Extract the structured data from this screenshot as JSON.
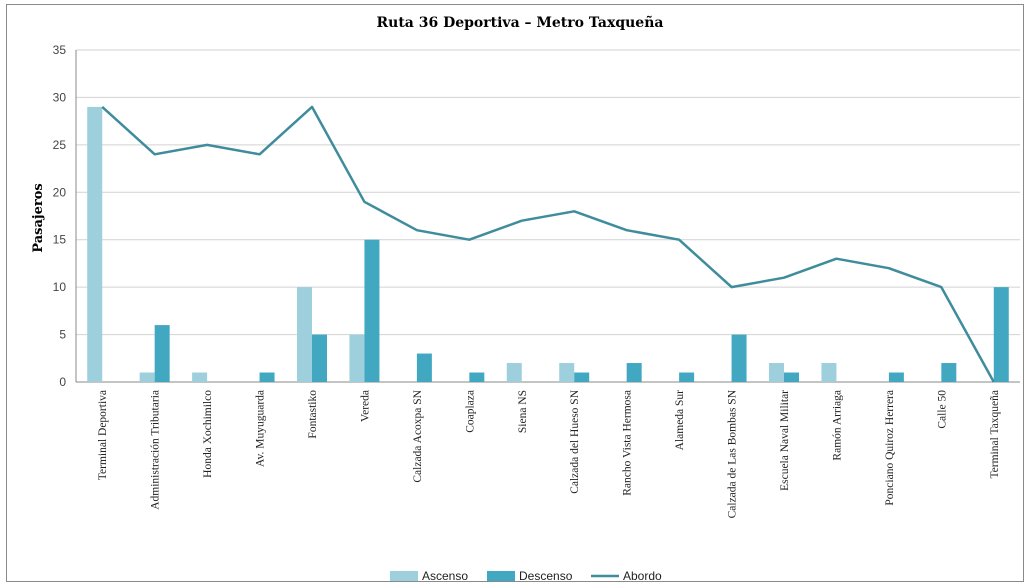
{
  "chart_data": {
    "type": "bar",
    "title": "Ruta 36 Deportiva – Metro Taxqueña",
    "ylabel": "Pasajeros",
    "xlabel": "",
    "ylim": [
      0,
      35
    ],
    "yticks": [
      0,
      5,
      10,
      15,
      20,
      25,
      30,
      35
    ],
    "grid": true,
    "legend_position": "bottom",
    "categories": [
      "Terminal Deportiva",
      "Administración Tributaria",
      "Honda Xochimilco",
      "Av. Muyuguarda",
      "Fontastiko",
      "Vereda",
      "Calzada Acoxpa SN",
      "Coaplaza",
      "Siena NS",
      "Calzada del Hueso SN",
      "Rancho Vista Hermosa",
      "Alameda Sur",
      "Calzada de Las Bombas SN",
      "Escuela Naval Militar",
      "Ramón Arriaga",
      "Ponciano Quiroz Herrera",
      "Calle 50",
      "Terminal Taxqueña"
    ],
    "series": [
      {
        "name": "Ascenso",
        "type": "bar",
        "color": "#9ecfdd",
        "values": [
          29,
          1,
          1,
          0,
          10,
          5,
          0,
          0,
          2,
          2,
          0,
          0,
          0,
          2,
          2,
          0,
          0,
          0
        ]
      },
      {
        "name": "Descenso",
        "type": "bar",
        "color": "#42a8c2",
        "values": [
          0,
          6,
          0,
          1,
          5,
          15,
          3,
          1,
          0,
          1,
          2,
          1,
          5,
          1,
          0,
          1,
          2,
          10
        ]
      },
      {
        "name": "Abordo",
        "type": "line",
        "color": "#3e8c9c",
        "values": [
          29,
          24,
          25,
          24,
          29,
          19,
          16,
          15,
          17,
          18,
          16,
          15,
          10,
          11,
          13,
          12,
          10,
          0
        ]
      }
    ]
  }
}
